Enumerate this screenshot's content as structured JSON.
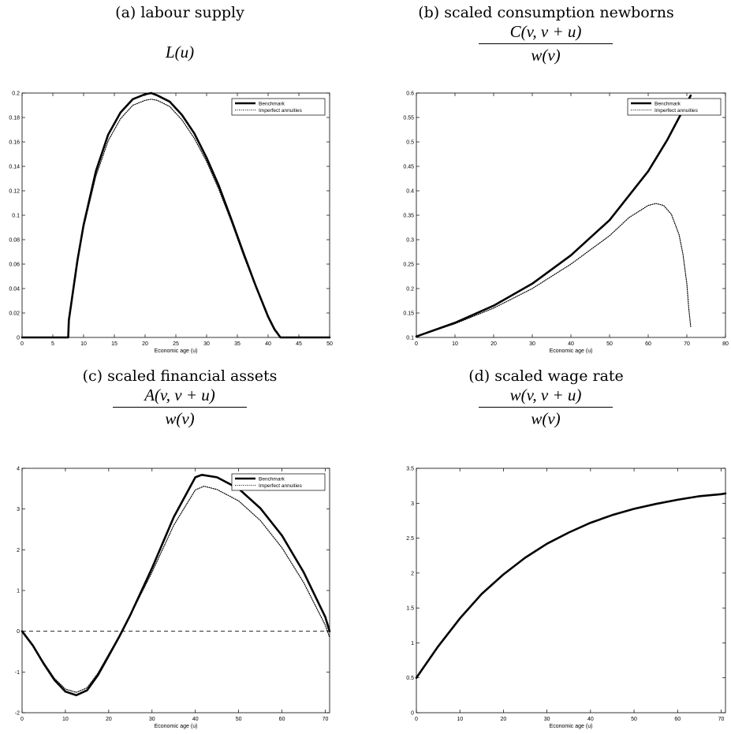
{
  "panels": {
    "a": {
      "title": "(a) labour supply",
      "formula": "L(u)"
    },
    "b": {
      "title": "(b) scaled consumption newborns",
      "numerator": "C(v, v + u)",
      "denominator": "w(v)"
    },
    "c": {
      "title": "(c) scaled financial assets",
      "numerator": "A(v, v + u)",
      "denominator": "w(v)"
    },
    "d": {
      "title": "(d) scaled wage rate",
      "numerator": "w(v, v + u)",
      "denominator": "w(v)"
    }
  },
  "chart_data": [
    {
      "type": "line",
      "title": "(a) labour supply",
      "subtitle": "L(u)",
      "xlabel": "Economic age (u)",
      "ylabel": "",
      "xlim": [
        0,
        50
      ],
      "ylim": [
        0,
        0.2
      ],
      "xticks": [
        0,
        5,
        10,
        15,
        20,
        25,
        30,
        35,
        40,
        45,
        50
      ],
      "yticks": [
        0,
        0.02,
        0.04,
        0.06,
        0.08,
        0.1,
        0.12,
        0.14,
        0.16,
        0.18,
        0.2
      ],
      "legend": "top-right",
      "series": [
        {
          "name": "Benchmark",
          "style": "solid",
          "x": [
            0,
            7.5,
            7.6,
            9,
            10,
            12,
            14,
            16,
            18,
            20,
            21,
            22,
            24,
            26,
            28,
            30,
            32,
            34,
            36,
            38,
            40,
            41,
            42,
            42.1,
            50
          ],
          "y": [
            0,
            0,
            0.014,
            0.063,
            0.092,
            0.136,
            0.166,
            0.184,
            0.195,
            0.199,
            0.2,
            0.198,
            0.193,
            0.182,
            0.167,
            0.147,
            0.124,
            0.097,
            0.069,
            0.042,
            0.017,
            0.007,
            0.0,
            0.0,
            0
          ]
        },
        {
          "name": "Imperfect annuities",
          "style": "dotted",
          "x": [
            0,
            7.5,
            7.6,
            9,
            10,
            12,
            14,
            16,
            18,
            20,
            21,
            22,
            24,
            26,
            28,
            30,
            32,
            34,
            36,
            38,
            40,
            41,
            42,
            42.1,
            50
          ],
          "y": [
            0,
            0,
            0.014,
            0.062,
            0.09,
            0.132,
            0.161,
            0.179,
            0.19,
            0.194,
            0.195,
            0.194,
            0.189,
            0.178,
            0.163,
            0.144,
            0.121,
            0.095,
            0.067,
            0.041,
            0.016,
            0.006,
            0.0,
            0.0,
            0
          ]
        }
      ]
    },
    {
      "type": "line",
      "title": "(b) scaled consumption newborns",
      "subtitle": "C(v, v + u) / w(v)",
      "xlabel": "Economic age (u)",
      "ylabel": "",
      "xlim": [
        0,
        80
      ],
      "ylim": [
        0.1,
        0.6
      ],
      "xticks": [
        0,
        10,
        20,
        30,
        40,
        50,
        60,
        70,
        80
      ],
      "yticks": [
        0.1,
        0.15,
        0.2,
        0.25,
        0.3,
        0.35,
        0.4,
        0.45,
        0.5,
        0.55,
        0.6
      ],
      "legend": "top-right",
      "series": [
        {
          "name": "Benchmark",
          "style": "solid",
          "x": [
            0,
            10,
            20,
            30,
            40,
            50,
            60,
            65,
            70,
            71
          ],
          "y": [
            0.102,
            0.13,
            0.165,
            0.21,
            0.268,
            0.34,
            0.44,
            0.505,
            0.58,
            0.595
          ]
        },
        {
          "name": "Imperfect annuities",
          "style": "dotted",
          "x": [
            0,
            10,
            20,
            30,
            40,
            50,
            55,
            60,
            62,
            64,
            66,
            68,
            69,
            70,
            70.5,
            71
          ],
          "y": [
            0.102,
            0.128,
            0.16,
            0.2,
            0.25,
            0.308,
            0.345,
            0.37,
            0.374,
            0.37,
            0.352,
            0.31,
            0.27,
            0.21,
            0.16,
            0.122
          ]
        }
      ]
    },
    {
      "type": "line",
      "title": "(c) scaled financial assets",
      "subtitle": "A(v, v + u) / w(v)",
      "xlabel": "Economic age (u)",
      "ylabel": "",
      "xlim": [
        0,
        71
      ],
      "ylim": [
        -2,
        4
      ],
      "xticks": [
        0,
        10,
        20,
        30,
        40,
        50,
        60,
        70
      ],
      "yticks": [
        -2,
        -1,
        0,
        1,
        2,
        3,
        4
      ],
      "zero_line": "dashed",
      "legend": "top-right",
      "series": [
        {
          "name": "Benchmark",
          "style": "solid",
          "x": [
            0,
            2.5,
            5,
            7.5,
            10,
            12.5,
            15,
            17.5,
            20,
            22.5,
            25,
            30,
            35,
            40,
            41.5,
            45,
            50,
            55,
            60,
            65,
            70,
            71
          ],
          "y": [
            0,
            -0.35,
            -0.8,
            -1.2,
            -1.48,
            -1.57,
            -1.45,
            -1.08,
            -0.6,
            -0.12,
            0.4,
            1.55,
            2.8,
            3.78,
            3.84,
            3.78,
            3.5,
            3.02,
            2.35,
            1.45,
            0.35,
            0.0
          ]
        },
        {
          "name": "Imperfect annuities",
          "style": "dotted",
          "x": [
            0,
            2.5,
            5,
            7.5,
            10,
            12.5,
            15,
            17.5,
            20,
            22.5,
            25,
            30,
            35,
            40,
            42,
            45,
            50,
            55,
            60,
            65,
            70,
            71
          ],
          "y": [
            0,
            -0.35,
            -0.77,
            -1.16,
            -1.42,
            -1.5,
            -1.39,
            -1.03,
            -0.56,
            -0.1,
            0.39,
            1.45,
            2.6,
            3.47,
            3.56,
            3.48,
            3.2,
            2.72,
            2.05,
            1.2,
            0.15,
            -0.15
          ]
        }
      ]
    },
    {
      "type": "line",
      "title": "(d) scaled wage rate",
      "subtitle": "w(v, v + u) / w(v)",
      "xlabel": "Economic age (u)",
      "ylabel": "",
      "xlim": [
        0,
        71
      ],
      "ylim": [
        0,
        3.5
      ],
      "xticks": [
        0,
        10,
        20,
        30,
        40,
        50,
        60,
        70
      ],
      "yticks": [
        0,
        0.5,
        1,
        1.5,
        2,
        2.5,
        3,
        3.5
      ],
      "legend": "none",
      "series": [
        {
          "name": "",
          "style": "solid",
          "x": [
            0,
            5,
            10,
            15,
            20,
            25,
            30,
            35,
            40,
            45,
            50,
            55,
            60,
            65,
            70,
            71
          ],
          "y": [
            0.5,
            0.95,
            1.35,
            1.7,
            1.98,
            2.22,
            2.42,
            2.58,
            2.72,
            2.83,
            2.92,
            2.99,
            3.05,
            3.1,
            3.13,
            3.14
          ]
        }
      ]
    }
  ]
}
